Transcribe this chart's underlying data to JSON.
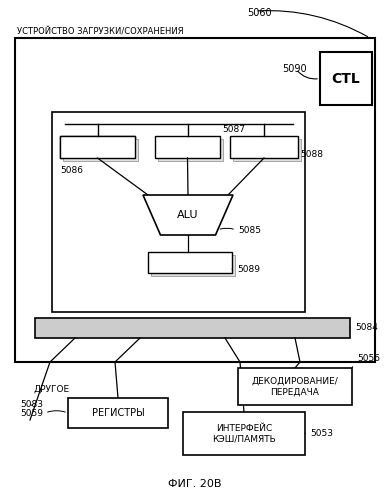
{
  "title": "ФИГ. 20В",
  "bg_color": "#ffffff",
  "label_outer": "УСТРОЙСТВО ЗАГРУЗКИ/СОХРАНЕНИЯ",
  "label_5060": "5060",
  "label_ctl": "CTL",
  "label_5090": "5090",
  "label_5087": "5087",
  "label_5086": "5086",
  "label_5088": "5088",
  "label_5085": "5085",
  "label_5089": "5089",
  "label_5084": "5084",
  "label_5083": "5083",
  "label_DRUGOE": "ДРУГОЕ",
  "label_5059": "5059",
  "label_REGISTRY": "РЕГИСТРЫ",
  "label_5056": "5056",
  "label_DECODE": "ДЕКОДИРОВАНИЕ/\nПЕРЕДАЧА",
  "label_5053": "5053",
  "label_CACHE": "ИНТЕРФЕЙС\nКЭШ/ПАМЯТЬ"
}
